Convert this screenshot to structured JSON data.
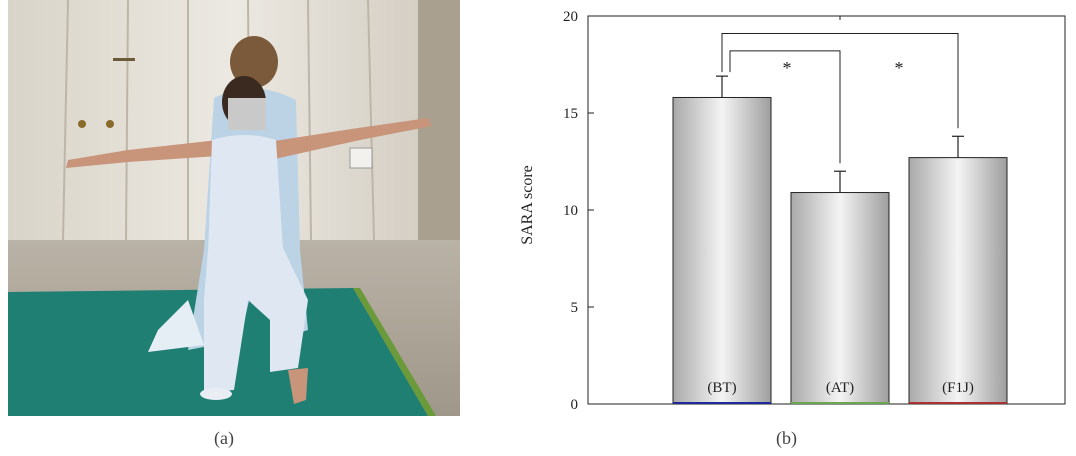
{
  "panels": {
    "a_label": "(a)",
    "b_label": "(b)"
  },
  "colors": {
    "mat": "#1f7f73",
    "wall": "#e9e6dd",
    "shirt": "#bcd3e6",
    "outfit": "#dfe8f2",
    "bar_edge": "#222222",
    "baseline_bt": "#1f2a9a",
    "baseline_at": "#6aa84f",
    "baseline_f1j": "#a83232"
  },
  "chart_data": {
    "type": "bar",
    "categories": [
      "(BT)",
      "(AT)",
      "(F1J)"
    ],
    "values": [
      15.8,
      10.9,
      12.7
    ],
    "errors": [
      1.1,
      1.1,
      1.1
    ],
    "ylabel": "SARA score",
    "ylim": [
      0,
      20
    ],
    "yticks": [
      "0",
      "5",
      "10",
      "15",
      "20"
    ],
    "grid": false,
    "legend": "none",
    "significance": [
      {
        "pair": [
          "(BT)",
          "(AT)"
        ],
        "label": "*"
      },
      {
        "pair": [
          "(BT)",
          "(F1J)"
        ],
        "label": "*"
      }
    ]
  }
}
